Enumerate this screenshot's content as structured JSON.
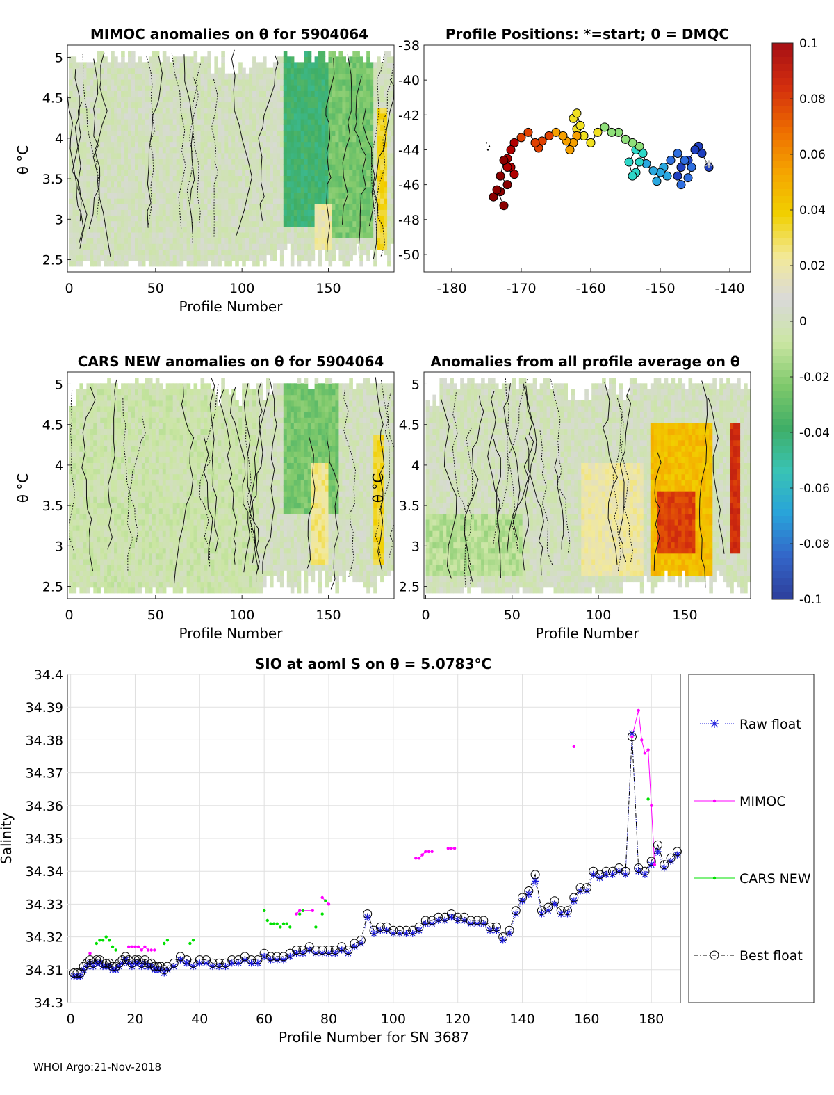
{
  "footer": "WHOI Argo:21-Nov-2018",
  "colormap": [
    "#2e3f9b",
    "#3465c8",
    "#28a3da",
    "#39c3b4",
    "#3fae66",
    "#7fc96b",
    "#cbe6a3",
    "#d9d9d9",
    "#f2e99a",
    "#f1d000",
    "#f5a300",
    "#ed6a00",
    "#d22d0e",
    "#a50f15"
  ],
  "colorbar": {
    "range": [
      -0.1,
      0.1
    ],
    "tick_labels": [
      "0.1",
      "0.08",
      "0.06",
      "0.04",
      "0.02",
      "0",
      "-0.02",
      "-0.04",
      "-0.06",
      "-0.08",
      "-0.1"
    ]
  },
  "panels": {
    "mimoc": {
      "title": "MIMOC anomalies on θ  for 5904064",
      "ylabel": "θ °C",
      "xlabel": "Profile Number",
      "x_ticks": [
        "0",
        "50",
        "100",
        "150"
      ],
      "y_ticks": [
        "5",
        "4.5",
        "4",
        "3.5",
        "3",
        "2.5"
      ]
    },
    "positions": {
      "title": "Profile Positions: *=start; 0 = DMQC",
      "x_ticks": [
        "-180",
        "-170",
        "-160",
        "-150",
        "-140"
      ],
      "y_ticks": [
        "-38",
        "-40",
        "-42",
        "-44",
        "-46",
        "-48",
        "-50"
      ]
    },
    "cars": {
      "title": "CARS NEW anomalies on θ for 5904064",
      "ylabel": "θ °C",
      "xlabel": "Profile Number",
      "x_ticks": [
        "0",
        "50",
        "100",
        "150"
      ],
      "y_ticks": [
        "5",
        "4.5",
        "4",
        "3.5",
        "3",
        "2.5"
      ]
    },
    "avg": {
      "title": "Anomalies from all profile average on θ",
      "ylabel": "θ °C",
      "xlabel": "Profile Number",
      "x_ticks": [
        "0",
        "50",
        "100",
        "150"
      ],
      "y_ticks": [
        "5",
        "4.5",
        "4",
        "3.5",
        "3",
        "2.5"
      ]
    }
  },
  "chart_data": [
    {
      "type": "heatmap",
      "title": "MIMOC anomalies on θ  for 5904064",
      "xlabel": "Profile Number",
      "ylabel": "θ °C",
      "xlim": [
        -1,
        188
      ],
      "ylim": [
        2.35,
        5.15
      ],
      "color_range": [
        -0.1,
        0.1
      ],
      "features": [
        {
          "x": [
            125,
            150
          ],
          "y": [
            2.9,
            5.1
          ],
          "anomaly": -0.04
        },
        {
          "x": [
            150,
            175
          ],
          "y": [
            2.8,
            5.1
          ],
          "anomaly": -0.025
        },
        {
          "x": [
            178,
            183
          ],
          "y": [
            2.6,
            4.4
          ],
          "anomaly": 0.035
        },
        {
          "x": [
            142,
            152
          ],
          "y": [
            2.6,
            3.2
          ],
          "anomaly": 0.02
        },
        {
          "x": [
            0,
            90
          ],
          "y": [
            2.4,
            5.1
          ],
          "anomaly": 0.0
        }
      ]
    },
    {
      "type": "scatter",
      "title": "Profile Positions: *=start; 0 = DMQC",
      "xlim": [
        -184,
        -137
      ],
      "ylim": [
        -51,
        -38
      ],
      "x": [
        -143.0,
        -144.0,
        -144.5,
        -145.0,
        -146.0,
        -147.0,
        -147.5,
        -147.0,
        -146.0,
        -145.5,
        -146.5,
        -147.5,
        -148.5,
        -149.5,
        -149.0,
        -150.0,
        -150.5,
        -151.0,
        -152.0,
        -152.5,
        -153.0,
        -153.5,
        -154.0,
        -154.5,
        -153.5,
        -153.0,
        -154.0,
        -155.0,
        -156.0,
        -157.0,
        -158.0,
        -159.0,
        -160.0,
        -161.0,
        -162.0,
        -162.5,
        -162.0,
        -161.5,
        -162.0,
        -162.5,
        -163.0,
        -163.5,
        -164.0,
        -165.0,
        -166.0,
        -167.0,
        -167.5,
        -168.0,
        -169.0,
        -170.0,
        -171.0,
        -171.5,
        -172.0,
        -171.5,
        -171.0,
        -172.0,
        -172.5,
        -173.0,
        -172.0,
        -173.0,
        -174.0,
        -173.5,
        -172.5
      ],
      "y": [
        -45.0,
        -44.2,
        -43.8,
        -44.0,
        -44.6,
        -45.0,
        -45.5,
        -46.0,
        -45.6,
        -45.0,
        -44.6,
        -44.2,
        -44.6,
        -45.0,
        -45.5,
        -45.3,
        -45.8,
        -45.2,
        -44.8,
        -44.2,
        -44.7,
        -45.3,
        -45.5,
        -44.7,
        -44.0,
        -43.8,
        -43.6,
        -43.4,
        -43.0,
        -43.0,
        -42.7,
        -43.0,
        -43.6,
        -43.2,
        -42.8,
        -42.2,
        -41.9,
        -42.6,
        -43.2,
        -43.6,
        -44.0,
        -43.5,
        -43.2,
        -43.0,
        -43.2,
        -43.5,
        -43.9,
        -43.6,
        -43.0,
        -43.3,
        -43.6,
        -44.0,
        -44.5,
        -45.0,
        -45.4,
        -45.0,
        -44.6,
        -45.5,
        -46.0,
        -46.4,
        -46.7,
        -46.3,
        -47.2
      ],
      "start_marker": {
        "x": -143.0,
        "y": -45.0
      },
      "outlier_points": {
        "x": [
          -175.0,
          -174.6,
          -174.8
        ],
        "y": [
          -43.6,
          -43.8,
          -44.0
        ]
      }
    },
    {
      "type": "heatmap",
      "title": "CARS NEW anomalies on θ for 5904064",
      "xlabel": "Profile Number",
      "ylabel": "θ °C",
      "xlim": [
        -1,
        188
      ],
      "ylim": [
        2.35,
        5.15
      ],
      "color_range": [
        -0.1,
        0.1
      ],
      "features": [
        {
          "x": [
            125,
            155
          ],
          "y": [
            3.4,
            5.0
          ],
          "anomaly": -0.025
        },
        {
          "x": [
            140,
            150
          ],
          "y": [
            2.8,
            4.0
          ],
          "anomaly": 0.025
        },
        {
          "x": [
            176,
            182
          ],
          "y": [
            2.8,
            4.4
          ],
          "anomaly": 0.035
        },
        {
          "x": [
            0,
            110
          ],
          "y": [
            2.4,
            5.1
          ],
          "anomaly": -0.005
        }
      ]
    },
    {
      "type": "heatmap",
      "title": "Anomalies from all profile average on θ",
      "xlabel": "Profile Number",
      "xlim": [
        -1,
        188
      ],
      "ylim": [
        2.35,
        5.15
      ],
      "color_range": [
        -0.1,
        0.1
      ],
      "features": [
        {
          "x": [
            0,
            55
          ],
          "y": [
            2.6,
            3.4
          ],
          "anomaly": -0.012
        },
        {
          "x": [
            90,
            125
          ],
          "y": [
            2.6,
            4.0
          ],
          "anomaly": 0.02
        },
        {
          "x": [
            130,
            165
          ],
          "y": [
            2.6,
            4.5
          ],
          "anomaly": 0.045
        },
        {
          "x": [
            135,
            155
          ],
          "y": [
            2.9,
            3.7
          ],
          "anomaly": 0.08
        },
        {
          "x": [
            176,
            182
          ],
          "y": [
            2.9,
            4.5
          ],
          "anomaly": 0.085
        }
      ]
    },
    {
      "type": "line",
      "title": "SIO at aoml S on θ = 5.0783°C",
      "xlabel": "Profile Number for SN 3687",
      "ylabel": "Salinity",
      "xlim": [
        -1,
        189
      ],
      "ylim": [
        34.3,
        34.4
      ],
      "grid": true,
      "legend_position": "outside-right",
      "x_ticks": [
        0,
        20,
        40,
        60,
        80,
        100,
        120,
        140,
        160,
        180
      ],
      "y_ticks": [
        "34.4",
        "34.39",
        "34.38",
        "34.37",
        "34.36",
        "34.35",
        "34.34",
        "34.33",
        "34.32",
        "34.31",
        "34.3"
      ],
      "legend": [
        "Raw float",
        "MIMOC",
        "CARS NEW",
        "Best float"
      ],
      "series": [
        {
          "name": "Raw float",
          "x": [
            1,
            2,
            3,
            4,
            5,
            6,
            7,
            8,
            9,
            10,
            11,
            12,
            13,
            14,
            15,
            16,
            17,
            18,
            19,
            20,
            21,
            22,
            23,
            24,
            25,
            26,
            27,
            28,
            29,
            30,
            32,
            34,
            36,
            38,
            40,
            42,
            44,
            46,
            48,
            50,
            52,
            54,
            56,
            58,
            60,
            62,
            64,
            66,
            68,
            70,
            72,
            74,
            76,
            78,
            80,
            82,
            84,
            86,
            88,
            90,
            92,
            94,
            96,
            98,
            100,
            102,
            104,
            106,
            108,
            110,
            112,
            114,
            116,
            118,
            120,
            122,
            124,
            126,
            128,
            130,
            132,
            134,
            136,
            138,
            140,
            142,
            144,
            146,
            148,
            150,
            152,
            154,
            156,
            158,
            160,
            162,
            164,
            166,
            168,
            170,
            172,
            174,
            176,
            178,
            180,
            182,
            184,
            186,
            188
          ],
          "values": [
            34.308,
            34.308,
            34.308,
            34.31,
            34.311,
            34.312,
            34.311,
            34.312,
            34.312,
            34.311,
            34.311,
            34.311,
            34.31,
            34.31,
            34.311,
            34.312,
            34.313,
            34.312,
            34.311,
            34.312,
            34.312,
            34.311,
            34.312,
            34.311,
            34.311,
            34.31,
            34.31,
            34.31,
            34.309,
            34.31,
            34.311,
            34.313,
            34.312,
            34.311,
            34.312,
            34.312,
            34.311,
            34.311,
            34.311,
            34.312,
            34.312,
            34.313,
            34.312,
            34.312,
            34.314,
            34.313,
            34.313,
            34.313,
            34.314,
            34.315,
            34.315,
            34.316,
            34.315,
            34.315,
            34.315,
            34.315,
            34.316,
            34.315,
            34.317,
            34.318,
            34.326,
            34.321,
            34.322,
            34.322,
            34.321,
            34.321,
            34.321,
            34.321,
            34.322,
            34.324,
            34.324,
            34.325,
            34.325,
            34.326,
            34.325,
            34.325,
            34.324,
            34.324,
            34.324,
            34.322,
            34.322,
            34.319,
            34.321,
            34.327,
            34.331,
            34.333,
            34.337,
            34.327,
            34.328,
            34.33,
            34.327,
            34.327,
            34.331,
            34.334,
            34.334,
            34.339,
            34.338,
            34.339,
            34.339,
            34.34,
            34.339,
            34.382,
            34.34,
            34.339,
            34.342,
            34.346,
            34.341,
            34.343,
            34.345
          ]
        },
        {
          "name": "MIMOC",
          "x": [
            6,
            18,
            19,
            20,
            21,
            22,
            23,
            24,
            25,
            26,
            60,
            70,
            71,
            72,
            75,
            78,
            79,
            80,
            107,
            108,
            109,
            110,
            111,
            112,
            117,
            118,
            119,
            156,
            174,
            176,
            177,
            178,
            179,
            180,
            181
          ],
          "values": [
            34.315,
            34.317,
            34.317,
            34.317,
            34.317,
            34.316,
            34.317,
            34.316,
            34.316,
            34.316,
            34.328,
            34.327,
            34.328,
            34.328,
            34.328,
            34.332,
            34.331,
            34.33,
            34.344,
            34.344,
            34.345,
            34.346,
            34.346,
            34.346,
            34.347,
            34.347,
            34.347,
            34.378,
            34.381,
            34.389,
            34.38,
            34.376,
            34.377,
            34.36,
            34.342
          ],
          "gaps_after": [
            6,
            26,
            60,
            75,
            80,
            112,
            119,
            156
          ]
        },
        {
          "name": "CARS NEW",
          "x": [
            8,
            9,
            10,
            11,
            12,
            13,
            14,
            29,
            30,
            37,
            38,
            60,
            61,
            62,
            63,
            64,
            65,
            66,
            67,
            68,
            71,
            72,
            76,
            78,
            79,
            179
          ],
          "values": [
            34.318,
            34.319,
            34.319,
            34.32,
            34.319,
            34.317,
            34.316,
            34.318,
            34.319,
            34.318,
            34.319,
            34.328,
            34.325,
            34.324,
            34.324,
            34.324,
            34.323,
            34.324,
            34.324,
            34.323,
            34.327,
            34.328,
            34.323,
            34.327,
            34.331,
            34.362
          ]
        },
        {
          "name": "Best float",
          "x": [
            1,
            2,
            3,
            4,
            5,
            6,
            7,
            8,
            9,
            10,
            11,
            12,
            13,
            14,
            15,
            16,
            17,
            18,
            19,
            20,
            21,
            22,
            23,
            24,
            25,
            26,
            27,
            28,
            29,
            30,
            32,
            34,
            36,
            38,
            40,
            42,
            44,
            46,
            48,
            50,
            52,
            54,
            56,
            58,
            60,
            62,
            64,
            66,
            68,
            70,
            72,
            74,
            76,
            78,
            80,
            82,
            84,
            86,
            88,
            90,
            92,
            94,
            96,
            98,
            100,
            102,
            104,
            106,
            108,
            110,
            112,
            114,
            116,
            118,
            120,
            122,
            124,
            126,
            128,
            130,
            132,
            134,
            136,
            138,
            140,
            142,
            144,
            146,
            148,
            150,
            152,
            154,
            156,
            158,
            160,
            162,
            164,
            166,
            168,
            170,
            172,
            174,
            176,
            178,
            180,
            182,
            184,
            186,
            188
          ],
          "values": [
            34.309,
            34.309,
            34.309,
            34.311,
            34.312,
            34.313,
            34.312,
            34.313,
            34.313,
            34.312,
            34.312,
            34.312,
            34.311,
            34.311,
            34.312,
            34.313,
            34.314,
            34.313,
            34.312,
            34.313,
            34.313,
            34.312,
            34.313,
            34.312,
            34.312,
            34.311,
            34.311,
            34.311,
            34.31,
            34.311,
            34.312,
            34.314,
            34.313,
            34.312,
            34.313,
            34.313,
            34.312,
            34.312,
            34.312,
            34.313,
            34.313,
            34.314,
            34.313,
            34.313,
            34.315,
            34.314,
            34.314,
            34.314,
            34.315,
            34.316,
            34.316,
            34.317,
            34.316,
            34.316,
            34.316,
            34.316,
            34.317,
            34.316,
            34.318,
            34.319,
            34.327,
            34.322,
            34.323,
            34.323,
            34.322,
            34.322,
            34.322,
            34.322,
            34.323,
            34.325,
            34.325,
            34.326,
            34.326,
            34.327,
            34.326,
            34.326,
            34.325,
            34.325,
            34.325,
            34.323,
            34.323,
            34.32,
            34.322,
            34.328,
            34.332,
            34.334,
            34.339,
            34.328,
            34.329,
            34.331,
            34.328,
            34.328,
            34.332,
            34.335,
            34.335,
            34.34,
            34.339,
            34.34,
            34.34,
            34.341,
            34.34,
            34.381,
            34.341,
            34.34,
            34.343,
            34.348,
            34.342,
            34.344,
            34.346
          ]
        }
      ]
    }
  ]
}
